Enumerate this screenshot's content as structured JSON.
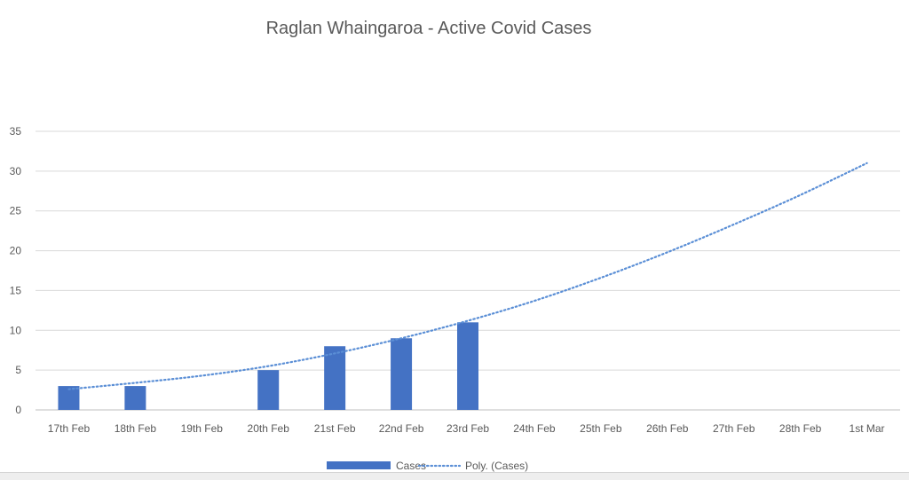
{
  "chart_data": {
    "type": "bar",
    "title": "Raglan Whaingaroa - Active Covid Cases",
    "xlabel": "",
    "ylabel": "",
    "categories": [
      "17th Feb",
      "18th Feb",
      "19th Feb",
      "20th Feb",
      "21st Feb",
      "22nd Feb",
      "23rd Feb",
      "24th Feb",
      "25th Feb",
      "26th Feb",
      "27th Feb",
      "28th Feb",
      "1st Mar"
    ],
    "yticks": [
      "0",
      "5",
      "10",
      "15",
      "20",
      "25",
      "30",
      "35"
    ],
    "ylim": [
      0,
      35
    ],
    "grid": true,
    "legend_position": "bottom",
    "series": [
      {
        "name": "Cases",
        "kind": "bar",
        "color": "#4472c4",
        "values": [
          3,
          3,
          0,
          5,
          8,
          9,
          11,
          null,
          null,
          null,
          null,
          null,
          null
        ]
      },
      {
        "name": "Poly. (Cases)",
        "kind": "trendline-dotted",
        "color": "#5b8fd6",
        "values": [
          2.6,
          3.4,
          4.3,
          5.5,
          7.1,
          9.0,
          11.2,
          13.7,
          16.6,
          19.8,
          23.3,
          27.0,
          31.0
        ]
      }
    ]
  }
}
